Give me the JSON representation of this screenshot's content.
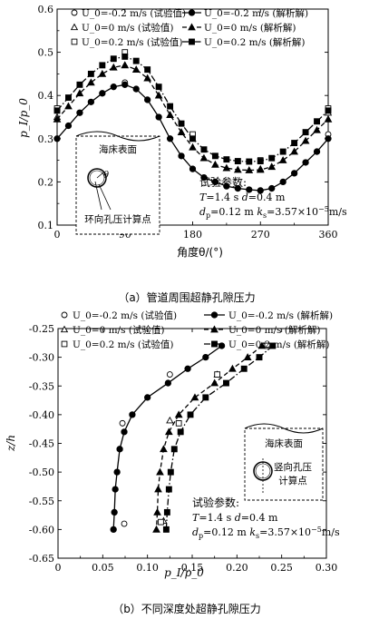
{
  "chart_data": [
    {
      "panel": "a",
      "type": "line",
      "xlabel": "角度θ/(°)",
      "ylabel": "p_I/p_0",
      "xlim": [
        0,
        360
      ],
      "ylim": [
        0.1,
        0.6
      ],
      "xticks": [
        "0",
        "90",
        "180",
        "270",
        "360"
      ],
      "yticks": [
        "0.1",
        "0.2",
        "0.3",
        "0.4",
        "0.5",
        "0.6"
      ],
      "legend_position": "top",
      "series": [
        {
          "name": "U_0=-0.2 m/s (试验值)",
          "kind": "experiment",
          "marker": "circle",
          "x": [
            0,
            90,
            180,
            270,
            360
          ],
          "y": [
            0.3,
            0.43,
            0.23,
            0.18,
            0.31
          ]
        },
        {
          "name": "U_0=-0.2 m/s (解析解)",
          "kind": "analytic",
          "marker": "circle-filled",
          "line": "solid",
          "x": [
            0,
            15,
            30,
            45,
            60,
            75,
            90,
            105,
            120,
            135,
            150,
            165,
            180,
            195,
            210,
            225,
            240,
            255,
            270,
            285,
            300,
            315,
            330,
            345,
            360
          ],
          "y": [
            0.3,
            0.33,
            0.36,
            0.385,
            0.405,
            0.42,
            0.425,
            0.415,
            0.39,
            0.35,
            0.3,
            0.26,
            0.23,
            0.21,
            0.2,
            0.19,
            0.185,
            0.182,
            0.18,
            0.185,
            0.2,
            0.22,
            0.245,
            0.27,
            0.3
          ]
        },
        {
          "name": "U_0=0 m/s (试验值)",
          "kind": "experiment",
          "marker": "triangle",
          "x": [
            0,
            90,
            180,
            270,
            360
          ],
          "y": [
            0.35,
            0.47,
            0.3,
            0.23,
            0.36
          ]
        },
        {
          "name": "U_0=0 m/s (解析解)",
          "kind": "analytic",
          "marker": "triangle-filled",
          "line": "dashed",
          "x": [
            0,
            15,
            30,
            45,
            60,
            75,
            90,
            105,
            120,
            135,
            150,
            165,
            180,
            195,
            210,
            225,
            240,
            255,
            270,
            285,
            300,
            315,
            330,
            345,
            360
          ],
          "y": [
            0.345,
            0.375,
            0.405,
            0.43,
            0.45,
            0.465,
            0.47,
            0.46,
            0.44,
            0.4,
            0.355,
            0.315,
            0.28,
            0.255,
            0.24,
            0.232,
            0.228,
            0.227,
            0.228,
            0.235,
            0.25,
            0.27,
            0.295,
            0.32,
            0.345
          ]
        },
        {
          "name": "U_0=0.2 m/s (试验值)",
          "kind": "experiment",
          "marker": "square",
          "x": [
            0,
            90,
            180,
            270,
            360
          ],
          "y": [
            0.37,
            0.5,
            0.31,
            0.25,
            0.37
          ]
        },
        {
          "name": "U_0=0.2 m/s (解析解)",
          "kind": "analytic",
          "marker": "square-filled",
          "line": "dashdot",
          "x": [
            0,
            15,
            30,
            45,
            60,
            75,
            90,
            105,
            120,
            135,
            150,
            165,
            180,
            195,
            210,
            225,
            240,
            255,
            270,
            285,
            300,
            315,
            330,
            345,
            360
          ],
          "y": [
            0.365,
            0.395,
            0.425,
            0.45,
            0.47,
            0.485,
            0.49,
            0.48,
            0.46,
            0.42,
            0.375,
            0.335,
            0.3,
            0.275,
            0.26,
            0.252,
            0.248,
            0.247,
            0.248,
            0.255,
            0.27,
            0.29,
            0.315,
            0.34,
            0.365
          ]
        }
      ],
      "inset": {
        "seabed_label": "海床表面",
        "theta_label": "θ",
        "point_label": "环向孔压计算点"
      },
      "params": {
        "title": "试验参数:",
        "line1": {
          "T": "1.4",
          "T_unit": "s",
          "d": "0.4",
          "d_unit": "m"
        },
        "line2": {
          "dp": "0.12",
          "dp_unit": "m",
          "ks": "3.57×10",
          "ks_exp": "−5",
          "ks_unit": "m/s"
        }
      },
      "caption": "（a）管道周围超静孔隙压力"
    },
    {
      "panel": "b",
      "type": "line",
      "xlabel": "p_I/p_0",
      "ylabel": "z/h",
      "xlim": [
        0,
        0.3
      ],
      "ylim": [
        -0.65,
        -0.25
      ],
      "xticks": [
        "0",
        "0.05",
        "0.10",
        "0.15",
        "0.20",
        "0.25",
        "0.30"
      ],
      "yticks": [
        "-0.25",
        "-0.30",
        "-0.35",
        "-0.40",
        "-0.45",
        "-0.50",
        "-0.55",
        "-0.60",
        "-0.65"
      ],
      "legend_position": "top",
      "series": [
        {
          "name": "U_0=-0.2 m/s (试验值)",
          "kind": "experiment",
          "marker": "circle",
          "x": [
            0.183,
            0.125,
            0.072,
            0.074
          ],
          "y": [
            -0.28,
            -0.33,
            -0.415,
            -0.59
          ]
        },
        {
          "name": "U_0=-0.2 m/s (解析解)",
          "kind": "analytic",
          "marker": "circle-filled",
          "line": "solid",
          "x": [
            0.183,
            0.165,
            0.145,
            0.123,
            0.1,
            0.083,
            0.074,
            0.069,
            0.066,
            0.064,
            0.063,
            0.062
          ],
          "y": [
            -0.28,
            -0.3,
            -0.32,
            -0.345,
            -0.37,
            -0.4,
            -0.43,
            -0.46,
            -0.5,
            -0.53,
            -0.57,
            -0.6
          ]
        },
        {
          "name": "U_0=0 m/s (试验值)",
          "kind": "experiment",
          "marker": "triangle",
          "x": [
            0.23,
            0.178,
            0.125,
            0.118
          ],
          "y": [
            -0.28,
            -0.33,
            -0.41,
            -0.585
          ]
        },
        {
          "name": "U_0=0 m/s (解析解)",
          "kind": "analytic",
          "marker": "triangle-filled",
          "line": "dashed",
          "x": [
            0.228,
            0.212,
            0.195,
            0.175,
            0.153,
            0.135,
            0.124,
            0.118,
            0.114,
            0.112,
            0.111,
            0.11
          ],
          "y": [
            -0.28,
            -0.3,
            -0.32,
            -0.345,
            -0.37,
            -0.4,
            -0.43,
            -0.46,
            -0.5,
            -0.53,
            -0.57,
            -0.6
          ]
        },
        {
          "name": "U_0=0.2 m/s (试验值)",
          "kind": "experiment",
          "marker": "square",
          "x": [
            0.234,
            0.178,
            0.135,
            0.115
          ],
          "y": [
            -0.28,
            -0.33,
            -0.415,
            -0.587
          ]
        },
        {
          "name": "U_0=0.2 m/s (解析解)",
          "kind": "analytic",
          "marker": "square-filled",
          "line": "dashdot",
          "x": [
            0.24,
            0.225,
            0.208,
            0.188,
            0.165,
            0.148,
            0.137,
            0.13,
            0.126,
            0.124,
            0.122,
            0.121
          ],
          "y": [
            -0.28,
            -0.3,
            -0.32,
            -0.345,
            -0.37,
            -0.4,
            -0.43,
            -0.46,
            -0.5,
            -0.53,
            -0.57,
            -0.6
          ]
        }
      ],
      "inset": {
        "seabed_label": "海床表面",
        "point_label_1": "竖向孔压",
        "point_label_2": "计算点"
      },
      "params": {
        "title": "试验参数:",
        "line1": {
          "T": "1.4",
          "T_unit": "s",
          "d": "0.4",
          "d_unit": "m"
        },
        "line2": {
          "dp": "0.12",
          "dp_unit": "m",
          "ks": "3.57×10",
          "ks_exp": "−5",
          "ks_unit": "m/s"
        }
      },
      "caption": "（b）不同深度处超静孔隙压力"
    }
  ]
}
